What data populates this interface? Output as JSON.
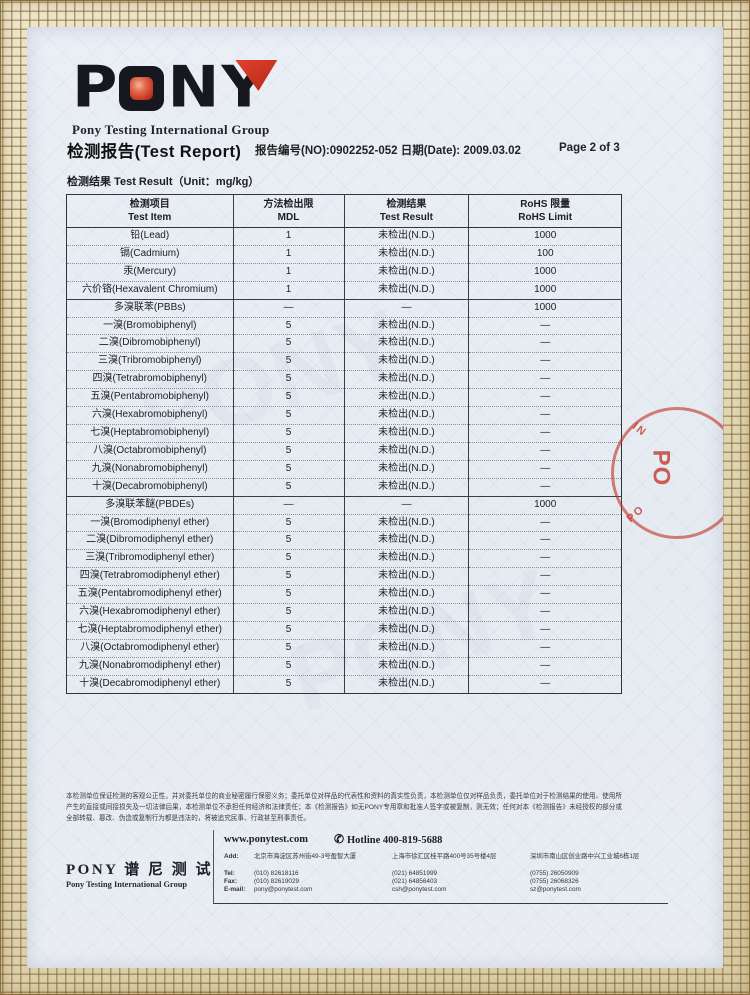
{
  "logo": {
    "letter_p": "P",
    "letter_n": "N",
    "letter_y": "Y",
    "subtitle": "Pony Testing International Group",
    "brand_black": "#17171f",
    "brand_red": "#c03420"
  },
  "header": {
    "title": "检测报告(Test Report)",
    "report_no_and_date": "报告编号(NO):0902252-052  日期(Date): 2009.03.02",
    "page": "Page 2 of 3",
    "section_title": "检测结果 Test Result（Unit：mg/kg）"
  },
  "table": {
    "headers": [
      {
        "cn": "检测项目",
        "en": "Test Item"
      },
      {
        "cn": "方法检出限",
        "en": "MDL"
      },
      {
        "cn": "检测结果",
        "en": "Test Result"
      },
      {
        "cn": "RoHS 限量",
        "en": "RoHS Limit"
      }
    ],
    "rows": [
      {
        "item": "铅(Lead)",
        "mdl": "1",
        "result": "未检出(N.D.)",
        "limit": "1000",
        "sep": "none"
      },
      {
        "item": "镉(Cadmium)",
        "mdl": "1",
        "result": "未检出(N.D.)",
        "limit": "100",
        "sep": "dotted"
      },
      {
        "item": "汞(Mercury)",
        "mdl": "1",
        "result": "未检出(N.D.)",
        "limit": "1000",
        "sep": "dotted"
      },
      {
        "item": "六价铬(Hexavalent Chromium)",
        "mdl": "1",
        "result": "未检出(N.D.)",
        "limit": "1000",
        "sep": "dotted"
      },
      {
        "item": "多溴联苯(PBBs)",
        "mdl": "—",
        "result": "—",
        "limit": "1000",
        "sep": "solid"
      },
      {
        "item": "一溴(Bromobiphenyl)",
        "mdl": "5",
        "result": "未检出(N.D.)",
        "limit": "—",
        "sep": "dotted"
      },
      {
        "item": "二溴(Dibromobiphenyl)",
        "mdl": "5",
        "result": "未检出(N.D.)",
        "limit": "—",
        "sep": "dotted"
      },
      {
        "item": "三溴(Tribromobiphenyl)",
        "mdl": "5",
        "result": "未检出(N.D.)",
        "limit": "—",
        "sep": "dotted"
      },
      {
        "item": "四溴(Tetrabromobiphenyl)",
        "mdl": "5",
        "result": "未检出(N.D.)",
        "limit": "—",
        "sep": "dotted"
      },
      {
        "item": "五溴(Pentabromobiphenyl)",
        "mdl": "5",
        "result": "未检出(N.D.)",
        "limit": "—",
        "sep": "dotted"
      },
      {
        "item": "六溴(Hexabromobiphenyl)",
        "mdl": "5",
        "result": "未检出(N.D.)",
        "limit": "—",
        "sep": "dotted"
      },
      {
        "item": "七溴(Heptabromobiphenyl)",
        "mdl": "5",
        "result": "未检出(N.D.)",
        "limit": "—",
        "sep": "dotted"
      },
      {
        "item": "八溴(Octabromobiphenyl)",
        "mdl": "5",
        "result": "未检出(N.D.)",
        "limit": "—",
        "sep": "dotted"
      },
      {
        "item": "九溴(Nonabromobiphenyl)",
        "mdl": "5",
        "result": "未检出(N.D.)",
        "limit": "—",
        "sep": "dotted"
      },
      {
        "item": "十溴(Decabromobiphenyl)",
        "mdl": "5",
        "result": "未检出(N.D.)",
        "limit": "—",
        "sep": "dotted"
      },
      {
        "item": "多溴联苯醚(PBDEs)",
        "mdl": "—",
        "result": "—",
        "limit": "1000",
        "sep": "solid"
      },
      {
        "item": "一溴(Bromodiphenyl ether)",
        "mdl": "5",
        "result": "未检出(N.D.)",
        "limit": "—",
        "sep": "dotted"
      },
      {
        "item": "二溴(Dibromodiphenyl ether)",
        "mdl": "5",
        "result": "未检出(N.D.)",
        "limit": "—",
        "sep": "dotted"
      },
      {
        "item": "三溴(Tribromodiphenyl ether)",
        "mdl": "5",
        "result": "未检出(N.D.)",
        "limit": "—",
        "sep": "dotted"
      },
      {
        "item": "四溴(Tetrabromodiphenyl ether)",
        "mdl": "5",
        "result": "未检出(N.D.)",
        "limit": "—",
        "sep": "dotted"
      },
      {
        "item": "五溴(Pentabromodiphenyl ether)",
        "mdl": "5",
        "result": "未检出(N.D.)",
        "limit": "—",
        "sep": "dotted"
      },
      {
        "item": "六溴(Hexabromodiphenyl ether)",
        "mdl": "5",
        "result": "未检出(N.D.)",
        "limit": "—",
        "sep": "dotted"
      },
      {
        "item": "七溴(Heptabromodiphenyl ether)",
        "mdl": "5",
        "result": "未检出(N.D.)",
        "limit": "—",
        "sep": "dotted"
      },
      {
        "item": "八溴(Octabromodiphenyl ether)",
        "mdl": "5",
        "result": "未检出(N.D.)",
        "limit": "—",
        "sep": "dotted"
      },
      {
        "item": "九溴(Nonabromodiphenyl ether)",
        "mdl": "5",
        "result": "未检出(N.D.)",
        "limit": "—",
        "sep": "dotted"
      },
      {
        "item": "十溴(Decabromodiphenyl ether)",
        "mdl": "5",
        "result": "未检出(N.D.)",
        "limit": "—",
        "sep": "dotted"
      }
    ]
  },
  "disclaimer": "本检测单位保证检测的客观公正性，并对委托单位的商业秘密履行保密义务；委托单位对样品的代表性和资料的真实性负责，本检测单位仅对样品负责，委托单位对于检测结果的使用、使用所产生的直接或间接损失及一切法律后果，本检测单位不承担任何经济和法律责任；本《检测报告》如无PONY专用章和批准人签字或被复制，则无效；任何对本《检测报告》未经授权的部分或全部转载、篡改、伪造或复制行为都是违法的，将被追究民事、行政甚至刑事责任。",
  "footer": {
    "website": "www.ponytest.com",
    "hotline": "Hotline 400-819-5688",
    "phone_icon": "✆",
    "brand_cn": "PONY 谱 尼 测 试",
    "brand_en": "Pony Testing International Group",
    "labels": {
      "add": "Add:",
      "tel": "Tel:",
      "fax": "Fax:",
      "email": "E-mail:"
    },
    "offices": [
      {
        "address": "北京市海淀区苏州街49-3号盈智大厦",
        "tel": "(010) 82618116",
        "fax": "(010) 82619029",
        "email": "pony@ponytest.com"
      },
      {
        "address": "上海市徐汇区桂平路400号35号楼4层",
        "tel": "(021) 64851999",
        "fax": "(021) 64856403",
        "email": "csh@ponytest.com"
      },
      {
        "address": "深圳市南山区创业路中兴工业城6栋1层",
        "tel": "(0755) 26050909",
        "fax": "(0755) 26068326",
        "email": "sz@ponytest.com"
      }
    ]
  },
  "stamp": {
    "arc_top": "IN",
    "arc_bottom": "PO",
    "center": "PO",
    "color": "#c1342a"
  },
  "watermark": {
    "text": "PONY"
  }
}
